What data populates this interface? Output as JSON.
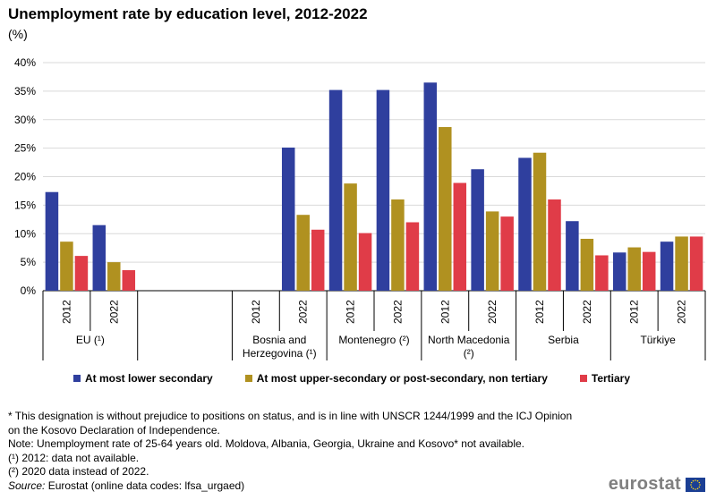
{
  "title": "Unemployment rate by education level, 2012-2022",
  "unit": "(%)",
  "chart_data": {
    "type": "bar",
    "ylim": [
      0,
      40
    ],
    "yticks": [
      "0%",
      "5%",
      "10%",
      "15%",
      "20%",
      "25%",
      "30%",
      "35%",
      "40%"
    ],
    "groups": [
      {
        "label": "EU (¹)",
        "years": [
          "2012",
          "2022"
        ]
      },
      {
        "label": "",
        "years": []
      },
      {
        "label": "Bosnia and\nHerzegovina (¹)",
        "years": [
          "2012",
          "2022"
        ]
      },
      {
        "label": "Montenegro (²)",
        "years": [
          "2012",
          "2022"
        ]
      },
      {
        "label": "North Macedonia\n(²)",
        "years": [
          "2012",
          "2022"
        ]
      },
      {
        "label": "Serbia",
        "years": [
          "2012",
          "2022"
        ]
      },
      {
        "label": "Türkiye",
        "years": [
          "2012",
          "2022"
        ]
      }
    ],
    "series": [
      {
        "name": "At most lower secondary",
        "color": "#2f3f9e",
        "values": [
          17.3,
          11.5,
          null,
          25.1,
          35.2,
          35.2,
          36.5,
          21.3,
          23.3,
          12.2,
          6.7,
          8.6
        ]
      },
      {
        "name": "At most upper-secondary or post-secondary, non tertiary",
        "color": "#b09120",
        "values": [
          8.6,
          5.0,
          null,
          13.3,
          18.8,
          16.0,
          28.7,
          13.9,
          24.2,
          9.1,
          7.6,
          9.5
        ]
      },
      {
        "name": "Tertiary",
        "color": "#e03c48",
        "values": [
          6.1,
          3.6,
          null,
          10.7,
          10.1,
          12.0,
          18.9,
          13.0,
          16.0,
          6.2,
          6.8,
          9.5
        ]
      }
    ]
  },
  "notes": [
    "* This designation is without prejudice to positions on status, and is in line with UNSCR 1244/1999 and the ICJ Opinion on the Kosovo Declaration of Independence.",
    "Note: Unemployment rate of 25-64 years old. Moldova, Albania, Georgia, Ukraine and Kosovo* not available.",
    "(¹) 2012: data not available.",
    "(²) 2020 data instead of 2022."
  ],
  "source": {
    "label": "Source:",
    "text": " Eurostat (online data codes: lfsa_urgaed)"
  },
  "logo": {
    "text": "eurostat",
    "flag_color": "#1b3f94",
    "star_color": "#ffd617"
  }
}
